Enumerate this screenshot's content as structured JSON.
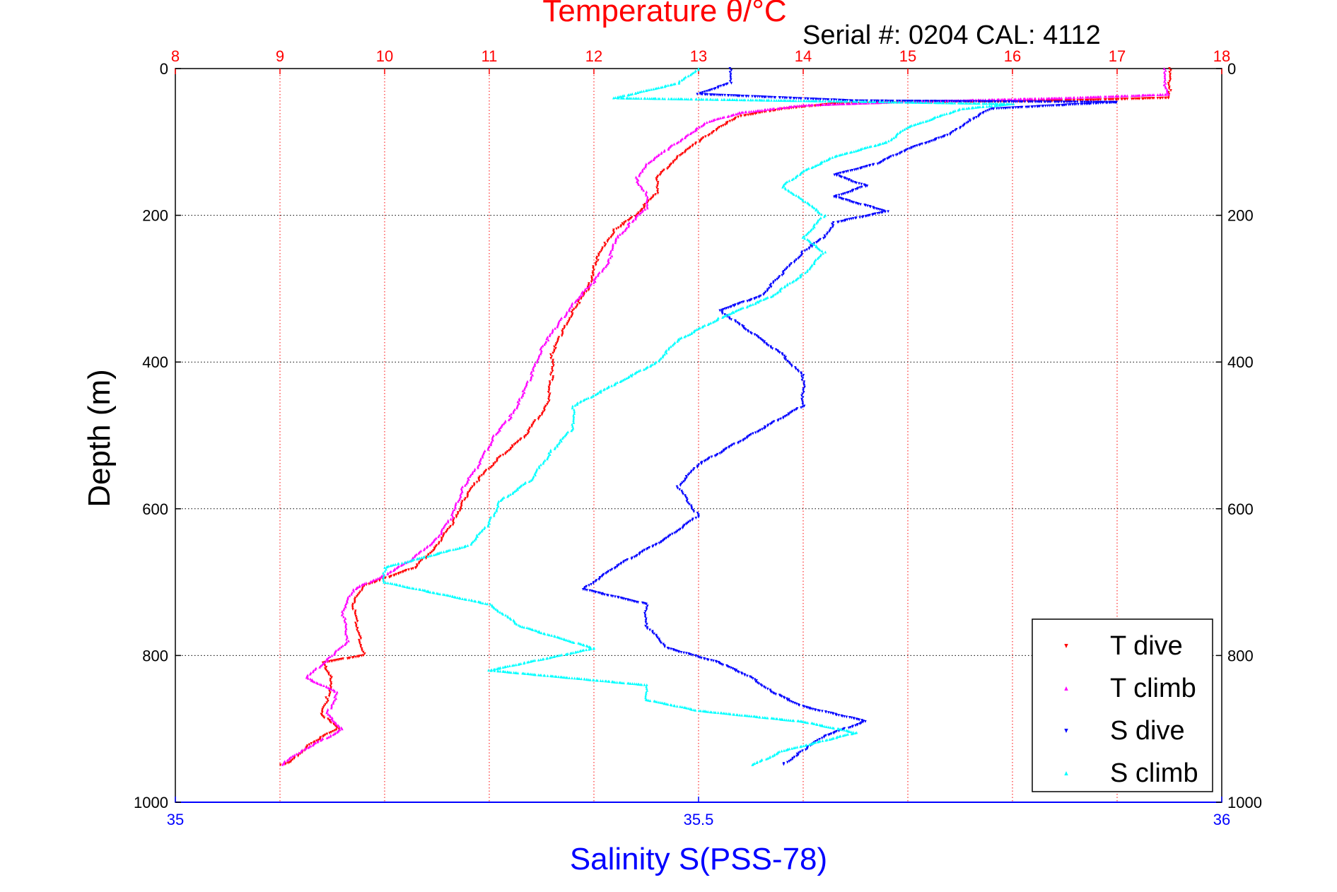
{
  "chart_data": {
    "type": "scatter",
    "title": "Temperature θ/°C",
    "subtitle": "Serial #: 0204  CAL: 4112",
    "ylabel": "Depth (m)",
    "xlabel": "Salinity S(PSS-78)",
    "ylim": [
      0,
      1000
    ],
    "y_reversed": true,
    "temperature_xlim": [
      8,
      18
    ],
    "salinity_xlim": [
      35,
      36
    ],
    "temperature_ticks": [
      "8",
      "9",
      "10",
      "11",
      "12",
      "13",
      "14",
      "15",
      "16",
      "17",
      "18"
    ],
    "salinity_ticks": [
      "35",
      "35.5",
      "36"
    ],
    "depth_ticks": [
      "0",
      "200",
      "400",
      "600",
      "800",
      "1000"
    ],
    "grid": true,
    "legend_position": "bottom-right",
    "colors": {
      "temperature_axis": "#ff0000",
      "salinity_axis": "#0000ff"
    },
    "series": [
      {
        "name": "T dive",
        "axis": "temperature",
        "color": "#ff0000",
        "marker": "triangle-down",
        "points": [
          [
            17.5,
            0
          ],
          [
            17.5,
            30
          ],
          [
            17.5,
            40
          ],
          [
            16.5,
            44
          ],
          [
            15.0,
            46
          ],
          [
            14.3,
            48
          ],
          [
            13.8,
            55
          ],
          [
            13.4,
            65
          ],
          [
            13.2,
            80
          ],
          [
            13.0,
            100
          ],
          [
            12.8,
            120
          ],
          [
            12.7,
            135
          ],
          [
            12.6,
            150
          ],
          [
            12.6,
            170
          ],
          [
            12.5,
            185
          ],
          [
            12.4,
            200
          ],
          [
            12.2,
            220
          ],
          [
            12.1,
            240
          ],
          [
            12.0,
            270
          ],
          [
            11.95,
            300
          ],
          [
            11.8,
            330
          ],
          [
            11.7,
            360
          ],
          [
            11.6,
            390
          ],
          [
            11.6,
            420
          ],
          [
            11.55,
            460
          ],
          [
            11.35,
            500
          ],
          [
            11.1,
            530
          ],
          [
            10.9,
            560
          ],
          [
            10.75,
            590
          ],
          [
            10.65,
            620
          ],
          [
            10.5,
            650
          ],
          [
            10.3,
            680
          ],
          [
            10.0,
            695
          ],
          [
            9.8,
            705
          ],
          [
            9.7,
            730
          ],
          [
            9.75,
            770
          ],
          [
            9.8,
            800
          ],
          [
            9.4,
            810
          ],
          [
            9.5,
            830
          ],
          [
            9.45,
            860
          ],
          [
            9.4,
            880
          ],
          [
            9.55,
            900
          ],
          [
            9.3,
            920
          ],
          [
            9.1,
            945
          ],
          [
            9.0,
            950
          ]
        ]
      },
      {
        "name": "T climb",
        "axis": "temperature",
        "color": "#ff00ff",
        "marker": "triangle-up",
        "points": [
          [
            17.45,
            0
          ],
          [
            17.45,
            20
          ],
          [
            17.5,
            35
          ],
          [
            16.5,
            40
          ],
          [
            15.0,
            45
          ],
          [
            14.0,
            50
          ],
          [
            13.4,
            60
          ],
          [
            13.1,
            72
          ],
          [
            12.9,
            90
          ],
          [
            12.7,
            110
          ],
          [
            12.5,
            130
          ],
          [
            12.4,
            150
          ],
          [
            12.5,
            170
          ],
          [
            12.5,
            190
          ],
          [
            12.35,
            210
          ],
          [
            12.2,
            235
          ],
          [
            12.15,
            260
          ],
          [
            12.0,
            290
          ],
          [
            11.8,
            320
          ],
          [
            11.65,
            350
          ],
          [
            11.5,
            380
          ],
          [
            11.4,
            420
          ],
          [
            11.3,
            450
          ],
          [
            11.2,
            475
          ],
          [
            11.05,
            500
          ],
          [
            10.9,
            540
          ],
          [
            10.75,
            570
          ],
          [
            10.65,
            610
          ],
          [
            10.5,
            640
          ],
          [
            10.25,
            670
          ],
          [
            10.0,
            690
          ],
          [
            9.7,
            710
          ],
          [
            9.6,
            740
          ],
          [
            9.65,
            780
          ],
          [
            9.5,
            800
          ],
          [
            9.25,
            830
          ],
          [
            9.55,
            850
          ],
          [
            9.45,
            880
          ],
          [
            9.6,
            900
          ],
          [
            9.2,
            930
          ],
          [
            9.0,
            950
          ]
        ]
      },
      {
        "name": "S dive",
        "axis": "salinity",
        "color": "#0000ff",
        "marker": "triangle-down",
        "points": [
          [
            35.53,
            0
          ],
          [
            35.53,
            20
          ],
          [
            35.5,
            35
          ],
          [
            35.65,
            44
          ],
          [
            35.9,
            46
          ],
          [
            35.78,
            55
          ],
          [
            35.76,
            70
          ],
          [
            35.74,
            90
          ],
          [
            35.7,
            110
          ],
          [
            35.67,
            130
          ],
          [
            35.63,
            145
          ],
          [
            35.66,
            160
          ],
          [
            35.63,
            175
          ],
          [
            35.68,
            195
          ],
          [
            35.63,
            210
          ],
          [
            35.62,
            230
          ],
          [
            35.6,
            250
          ],
          [
            35.58,
            280
          ],
          [
            35.56,
            310
          ],
          [
            35.52,
            330
          ],
          [
            35.55,
            360
          ],
          [
            35.58,
            390
          ],
          [
            35.6,
            420
          ],
          [
            35.6,
            460
          ],
          [
            35.55,
            500
          ],
          [
            35.5,
            540
          ],
          [
            35.48,
            570
          ],
          [
            35.5,
            610
          ],
          [
            35.47,
            640
          ],
          [
            35.42,
            680
          ],
          [
            35.39,
            710
          ],
          [
            35.45,
            730
          ],
          [
            35.45,
            760
          ],
          [
            35.47,
            790
          ],
          [
            35.52,
            810
          ],
          [
            35.55,
            830
          ],
          [
            35.57,
            850
          ],
          [
            35.6,
            870
          ],
          [
            35.66,
            890
          ],
          [
            35.62,
            910
          ],
          [
            35.6,
            930
          ],
          [
            35.58,
            950
          ]
        ]
      },
      {
        "name": "S climb",
        "axis": "salinity",
        "color": "#00ffff",
        "marker": "triangle-up",
        "points": [
          [
            35.5,
            0
          ],
          [
            35.48,
            20
          ],
          [
            35.42,
            40
          ],
          [
            35.8,
            48
          ],
          [
            35.75,
            55
          ],
          [
            35.7,
            80
          ],
          [
            35.68,
            100
          ],
          [
            35.63,
            120
          ],
          [
            35.6,
            140
          ],
          [
            35.58,
            160
          ],
          [
            35.6,
            180
          ],
          [
            35.62,
            200
          ],
          [
            35.6,
            230
          ],
          [
            35.62,
            250
          ],
          [
            35.6,
            280
          ],
          [
            35.57,
            310
          ],
          [
            35.52,
            340
          ],
          [
            35.48,
            370
          ],
          [
            35.46,
            400
          ],
          [
            35.42,
            430
          ],
          [
            35.38,
            460
          ],
          [
            35.38,
            490
          ],
          [
            35.36,
            520
          ],
          [
            35.34,
            560
          ],
          [
            35.31,
            590
          ],
          [
            35.3,
            620
          ],
          [
            35.28,
            650
          ],
          [
            35.2,
            680
          ],
          [
            35.2,
            700
          ],
          [
            35.3,
            730
          ],
          [
            35.33,
            760
          ],
          [
            35.4,
            790
          ],
          [
            35.3,
            820
          ],
          [
            35.45,
            840
          ],
          [
            35.45,
            860
          ],
          [
            35.5,
            875
          ],
          [
            35.6,
            890
          ],
          [
            35.65,
            905
          ],
          [
            35.58,
            930
          ],
          [
            35.55,
            950
          ]
        ]
      }
    ]
  }
}
